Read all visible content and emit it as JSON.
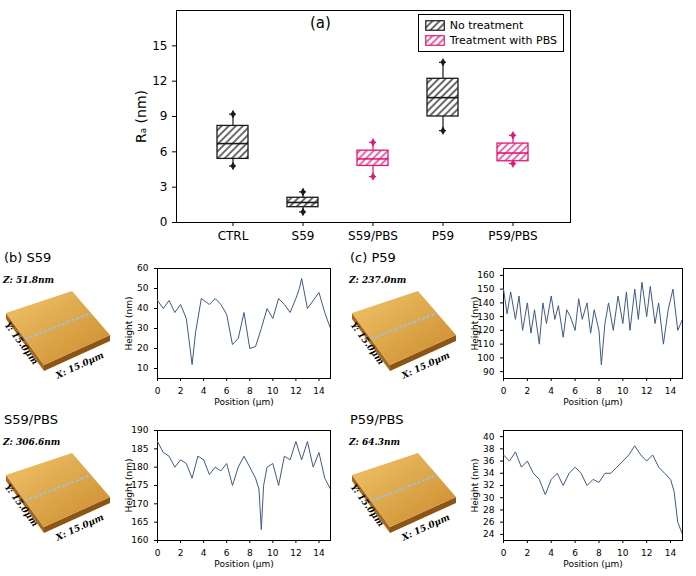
{
  "chart_data": [
    {
      "type": "box",
      "title": "(a)",
      "y_label": "Rₐ (nm)",
      "categories": [
        "CTRL",
        "S59",
        "S59/PBS",
        "P59",
        "P59/PBS"
      ],
      "ylim": [
        0,
        18
      ],
      "yticks": [
        0,
        3,
        6,
        9,
        12,
        15
      ],
      "grid": false,
      "legend": "top-right",
      "series": [
        {
          "name": "No treatment",
          "color": "#1a1a1a",
          "categories": [
            "CTRL",
            "S59",
            "P59"
          ],
          "values": [
            {
              "min": 4.8,
              "q1": 5.4,
              "median": 6.7,
              "q3": 8.2,
              "max": 9.2
            },
            {
              "min": 0.9,
              "q1": 1.3,
              "median": 1.7,
              "q3": 2.1,
              "max": 2.6
            },
            {
              "min": 7.8,
              "q1": 9.0,
              "median": 10.6,
              "q3": 12.2,
              "max": 13.6
            }
          ]
        },
        {
          "name": "Treatment with PBS",
          "color": "#e0187a",
          "categories": [
            "S59/PBS",
            "P59/PBS"
          ],
          "values": [
            {
              "min": 3.9,
              "q1": 4.8,
              "median": 5.4,
              "q3": 6.1,
              "max": 6.8
            },
            {
              "min": 5.0,
              "q1": 5.2,
              "median": 5.9,
              "q3": 6.7,
              "max": 7.4
            }
          ]
        }
      ]
    },
    {
      "type": "line",
      "x_label": "Position (μm)",
      "y_label": "Height (nm)",
      "color": "#3d5b87",
      "xlim": [
        0,
        15
      ],
      "xticks": [
        0,
        2,
        4,
        6,
        8,
        10,
        12,
        14
      ],
      "ylim": [
        5,
        60
      ],
      "yticks": [
        10,
        20,
        30,
        40,
        50,
        60
      ],
      "x": [
        0,
        0.5,
        1,
        1.5,
        2,
        2.5,
        3,
        3.3,
        3.8,
        4.5,
        5,
        5.5,
        6,
        6.5,
        7,
        7.5,
        8,
        8.5,
        9,
        9.5,
        10,
        10.5,
        11,
        11.5,
        12,
        12.3,
        12.5,
        13,
        13.5,
        14,
        14.5,
        15
      ],
      "values": [
        44,
        40,
        44,
        38,
        42,
        35,
        12,
        28,
        45,
        42,
        45,
        42,
        37,
        22,
        25,
        38,
        20,
        21,
        30,
        40,
        35,
        45,
        42,
        38,
        45,
        50,
        55,
        40,
        44,
        48,
        38,
        30
      ]
    },
    {
      "type": "line",
      "x_label": "Position (μm)",
      "y_label": "Height (nm)",
      "color": "#3d5b87",
      "xlim": [
        0,
        15
      ],
      "xticks": [
        0,
        2,
        4,
        6,
        8,
        10,
        12,
        14
      ],
      "ylim": [
        85,
        165
      ],
      "yticks": [
        90,
        100,
        110,
        120,
        130,
        140,
        150,
        160
      ],
      "x": [
        0,
        0.3,
        0.6,
        1,
        1.3,
        1.6,
        2,
        2.3,
        2.6,
        3,
        3.3,
        3.6,
        4,
        4.3,
        4.6,
        5,
        5.3,
        5.6,
        6,
        6.3,
        6.6,
        7,
        7.3,
        7.6,
        8,
        8.2,
        8.5,
        8.8,
        9.2,
        9.6,
        10,
        10.3,
        10.6,
        11,
        11.3,
        11.6,
        12,
        12.3,
        12.7,
        13,
        13.4,
        13.8,
        14.2,
        14.6,
        15
      ],
      "values": [
        150,
        132,
        148,
        128,
        145,
        120,
        140,
        118,
        135,
        110,
        140,
        125,
        145,
        128,
        138,
        115,
        135,
        130,
        120,
        143,
        128,
        140,
        118,
        135,
        120,
        95,
        125,
        140,
        120,
        145,
        125,
        148,
        120,
        150,
        128,
        155,
        130,
        152,
        125,
        140,
        110,
        135,
        150,
        120,
        128
      ]
    },
    {
      "type": "line",
      "x_label": "Position (μm)",
      "y_label": "Height (nm)",
      "color": "#3d5b87",
      "xlim": [
        0,
        15
      ],
      "xticks": [
        0,
        2,
        4,
        6,
        8,
        10,
        12,
        14
      ],
      "ylim": [
        160,
        190
      ],
      "yticks": [
        160,
        165,
        170,
        175,
        180,
        185,
        190
      ],
      "x": [
        0,
        0.5,
        1,
        1.5,
        2,
        2.5,
        3,
        3.5,
        4,
        4.5,
        5,
        5.5,
        6,
        6.5,
        7,
        7.5,
        8,
        8.5,
        8.8,
        9,
        9.2,
        9.5,
        10,
        10.5,
        11,
        11.5,
        12,
        12.5,
        13,
        13.5,
        14,
        14.5,
        15
      ],
      "values": [
        187,
        184,
        183,
        180,
        182,
        181,
        177,
        183,
        182,
        178,
        180,
        179,
        181,
        175,
        180,
        183,
        180,
        177,
        174,
        163,
        175,
        180,
        181,
        175,
        183,
        182,
        187,
        182,
        187,
        180,
        184,
        177,
        174
      ]
    },
    {
      "type": "line",
      "x_label": "Position (μm)",
      "y_label": "Height (nm)",
      "color": "#3d5b87",
      "xlim": [
        0,
        15
      ],
      "xticks": [
        0,
        2,
        4,
        6,
        8,
        10,
        12,
        14
      ],
      "ylim": [
        23,
        41
      ],
      "yticks": [
        24,
        26,
        28,
        30,
        32,
        34,
        36,
        38,
        40
      ],
      "x": [
        0,
        0.5,
        1,
        1.5,
        2,
        2.5,
        3,
        3.5,
        4,
        4.5,
        5,
        5.5,
        6,
        6.5,
        7,
        7.5,
        8,
        8.5,
        9,
        9.5,
        10,
        10.5,
        11,
        11.5,
        12,
        12.5,
        13,
        13.5,
        14,
        14.3,
        14.6,
        15
      ],
      "values": [
        37,
        36,
        37.5,
        35,
        36,
        34,
        33,
        30.5,
        33,
        34,
        32,
        34,
        35,
        34,
        32,
        33,
        32.5,
        34,
        34,
        35,
        36,
        37,
        38.5,
        37,
        36,
        37,
        35,
        34,
        33,
        31,
        26,
        24
      ]
    }
  ],
  "figure": {
    "panels": [
      {
        "label": "(b) S59",
        "image": {
          "z": "Z: 51.8nm",
          "y": "Y: 15.0μm",
          "x": "X: 15.0μm"
        }
      },
      {
        "label": "(c) P59",
        "image": {
          "z": "Z: 237.0nm",
          "y": "Y: 15.0μm",
          "x": "X: 15.0μm"
        }
      },
      {
        "label": "S59/PBS",
        "image": {
          "z": "Z: 306.6nm",
          "y": "Y: 15.0μm",
          "x": "X: 15.0μm"
        }
      },
      {
        "label": "P59/PBS",
        "image": {
          "z": "Z: 64.3nm",
          "y": "Y: 15.0μm",
          "x": "X: 15.0μm"
        }
      }
    ]
  }
}
